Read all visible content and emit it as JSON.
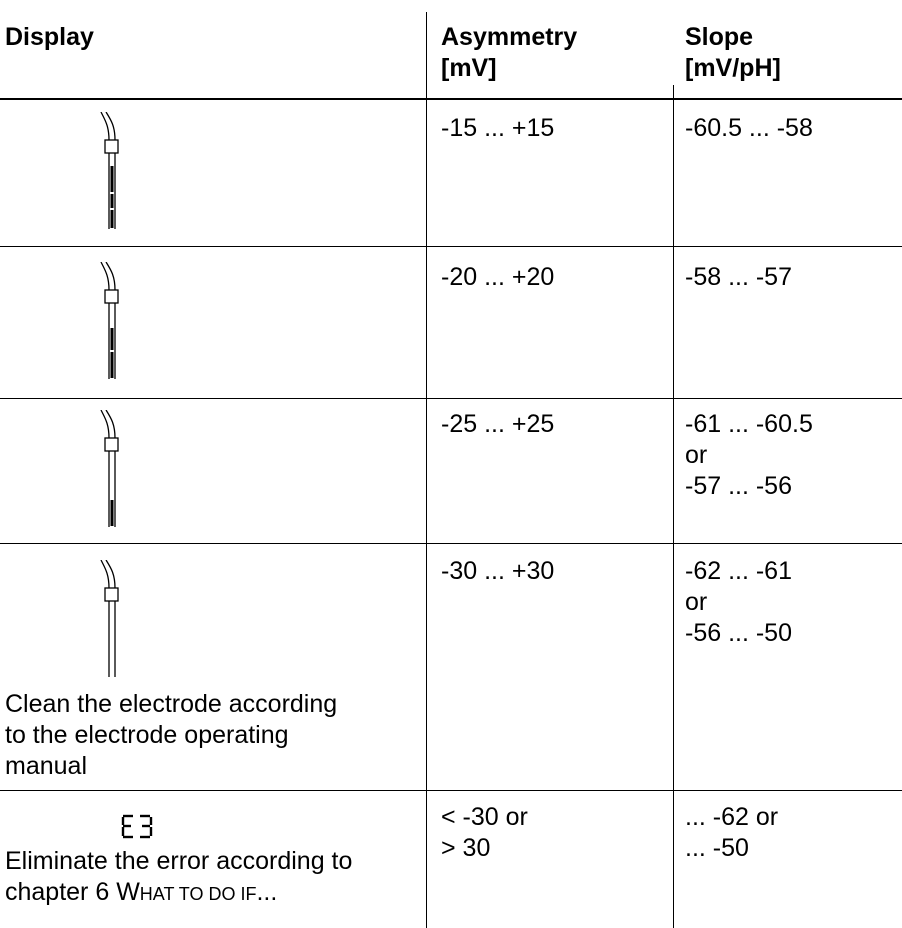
{
  "headers": {
    "display": "Display",
    "asymmetry": "Asymmetry\n[mV]",
    "slope": "Slope\n[mV/pH]"
  },
  "rows": [
    {
      "asymmetry": "-15 ... +15",
      "slope": "-60.5 ... -58",
      "display_icon": "electrode-icon-3-bars"
    },
    {
      "asymmetry": "-20 ... +20",
      "slope": "-58 ... -57",
      "display_icon": "electrode-icon-2-bars"
    },
    {
      "asymmetry": "-25 ... +25",
      "slope": "-61 ... -60.5\nor\n-57 ... -56",
      "display_icon": "electrode-icon-1-bar"
    },
    {
      "asymmetry": "-30 ... +30",
      "slope": "-62 ... -61\nor\n-56 ... -50",
      "display_icon": "electrode-icon-empty",
      "display_text": "Clean the electrode according\nto the electrode operating\nmanual"
    },
    {
      "asymmetry": "< -30 or\n> 30",
      "slope": "... -62 or\n... -50",
      "display_icon": "lcd-e3-icon",
      "display_code": "E3",
      "display_text_1": "Eliminate the error according to",
      "display_text_2": "chapter 6 ",
      "display_text_link_first": "W",
      "display_text_link_rest": "HAT TO DO IF",
      "display_text_end": "..."
    }
  ]
}
